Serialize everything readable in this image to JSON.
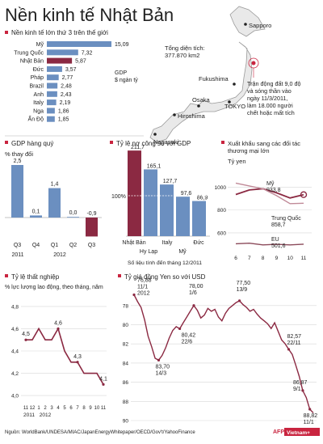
{
  "title": "Nền kinh tế Nhật Bản",
  "colors": {
    "blue": "#6b8fc0",
    "maroon": "#8b2942",
    "grid": "#d8d8d8",
    "text": "#222222",
    "ribbon": "#c9243f"
  },
  "map": {
    "area_label": "Tổng diện tích:",
    "area_value": "377.870 km2",
    "cities": [
      "Sapporo",
      "Fukushima",
      "TOKYO",
      "Osaka",
      "Hiroshima",
      "Nagasaki"
    ],
    "quake_note": [
      "Trận động đất 9,0 độ",
      "và sóng thần vào",
      "ngày 11/3/2011,",
      "làm 18.000 người",
      "chết hoặc mất tích"
    ]
  },
  "source": "Nguồn: WorldBank/UNDESA/MIAC/JapanEnergyWhitepaper/OECD/Gov't/YahooFinance",
  "logo": {
    "afp": "AFP",
    "vn": "Vietnam+"
  },
  "chart_data": [
    {
      "id": "gdp-top",
      "type": "bar",
      "title": "Nền kinh tế lớn thứ 3 trên thế giới",
      "unit_note": [
        "GDP",
        "$ ngàn tỷ"
      ],
      "categories": [
        "Mỹ",
        "Trung Quốc",
        "Nhật Bản",
        "Đức",
        "Pháp",
        "Brazil",
        "Anh",
        "Italy",
        "Nga",
        "Ấn Độ"
      ],
      "values": [
        15.09,
        7.32,
        5.87,
        3.57,
        2.77,
        2.48,
        2.43,
        2.19,
        1.86,
        1.85
      ],
      "value_labels": [
        "15,09",
        "7,32",
        "5,87",
        "3,57",
        "2,77",
        "2,48",
        "2,43",
        "2,19",
        "1,86",
        "1,85"
      ],
      "highlight": "Nhật Bản"
    },
    {
      "id": "gdp-growth",
      "type": "bar",
      "title": "GDP hàng quý",
      "ylabel": "% thay đổi",
      "categories": [
        "Q3",
        "Q4",
        "Q1",
        "Q2",
        "Q3"
      ],
      "year_labels": [
        "2011",
        "2012"
      ],
      "values": [
        2.5,
        0.1,
        1.4,
        0.0,
        -0.9
      ],
      "value_labels": [
        "2,5",
        "0,1",
        "1,4",
        "0,0",
        "-0,9"
      ]
    },
    {
      "id": "debt",
      "type": "bar",
      "title": "Tỷ lệ nợ công so với GDP",
      "categories": [
        "Nhật Bản",
        "Hy Lạp",
        "Italy",
        "Mỹ",
        "Đức"
      ],
      "values": [
        211.7,
        165.1,
        127.7,
        97.6,
        86.9
      ],
      "value_labels": [
        "211,7",
        "165,1",
        "127,7",
        "97,6",
        "86,9"
      ],
      "reference_label": "100%",
      "note": "Số liệu tính đến tháng 12/2011"
    },
    {
      "id": "exports",
      "type": "line",
      "title": [
        "Xuất khẩu sang các đối tác",
        "thương mại lớn"
      ],
      "ylabel": "Tỷ yen",
      "x": [
        6,
        7,
        8,
        9,
        10,
        11
      ],
      "yticks": [
        1000,
        800,
        600
      ],
      "ylim": [
        430,
        1080
      ],
      "series": [
        {
          "name": "Mỹ",
          "values": [
            935,
            975,
            985,
            950,
            905,
            933.8
          ],
          "label": "933,8"
        },
        {
          "name": "Trung Quốc",
          "values": [
            1035,
            1010,
            985,
            925,
            855,
            858.7
          ],
          "label": "858,7"
        },
        {
          "name": "EU",
          "values": [
            505,
            510,
            495,
            500,
            495,
            501.6
          ],
          "label": "501,6"
        }
      ]
    },
    {
      "id": "unemployment",
      "type": "line",
      "title": "Tỷ lệ thất nghiệp",
      "ylabel": "% lực lượng lao động, theo tháng, năm",
      "yticks": [
        "4,8",
        "4,6",
        "4,4",
        "4,2",
        "4,0"
      ],
      "ylim": [
        3.95,
        4.85
      ],
      "x_ticks": [
        "11",
        "12",
        "1",
        "2",
        "3",
        "4",
        "5",
        "6",
        "7",
        "8",
        "9",
        "10",
        "11"
      ],
      "year_labels": [
        "2011",
        "2012"
      ],
      "values": [
        4.5,
        4.5,
        4.6,
        4.5,
        4.5,
        4.6,
        4.4,
        4.3,
        4.3,
        4.2,
        4.2,
        4.2,
        4.1
      ],
      "annotations": [
        {
          "index": 0,
          "label": "4,5"
        },
        {
          "index": 5,
          "label": "4,6"
        },
        {
          "index": 8,
          "label": "4,3"
        },
        {
          "index": 12,
          "label": "4,1"
        }
      ]
    },
    {
      "id": "yen",
      "type": "line",
      "title": "Tỷ giá đồng Yen so với USD",
      "yticks": [
        "78",
        "80",
        "82",
        "84",
        "86",
        "88",
        "90"
      ],
      "ylim": [
        76.5,
        90
      ],
      "inverted": true,
      "values": [
        76.88,
        77.6,
        78.2,
        79.5,
        81.2,
        82.3,
        83.5,
        83.7,
        83.2,
        82.4,
        81.4,
        80.6,
        80.2,
        80.42,
        79.8,
        79.2,
        78.6,
        78.0,
        78.5,
        79.3,
        79.0,
        78.3,
        78.6,
        78.4,
        79.2,
        79.6,
        78.8,
        78.3,
        78.0,
        77.7,
        77.5,
        77.9,
        78.2,
        78.6,
        78.4,
        78.9,
        79.3,
        79.6,
        79.9,
        80.4,
        79.8,
        80.7,
        81.6,
        82.0,
        82.57,
        83.1,
        84.2,
        85.4,
        86.87,
        87.6,
        88.82,
        89.2
      ],
      "annotations": [
        {
          "index": 0,
          "label": [
            "76,88",
            "11/1",
            "2012"
          ]
        },
        {
          "index": 7,
          "label": [
            "83,70",
            "14/3"
          ]
        },
        {
          "index": 17,
          "label": [
            "78,00",
            "1/6"
          ]
        },
        {
          "index": 13,
          "label": [
            "80,42",
            "22/6"
          ]
        },
        {
          "index": 30,
          "label": [
            "77,50",
            "13/9"
          ]
        },
        {
          "index": 44,
          "label": [
            "82,57",
            "22/11"
          ]
        },
        {
          "index": 48,
          "label": [
            "86,87",
            "9/1"
          ]
        },
        {
          "index": 50,
          "label": [
            "88,82",
            "11/1"
          ]
        }
      ]
    }
  ]
}
